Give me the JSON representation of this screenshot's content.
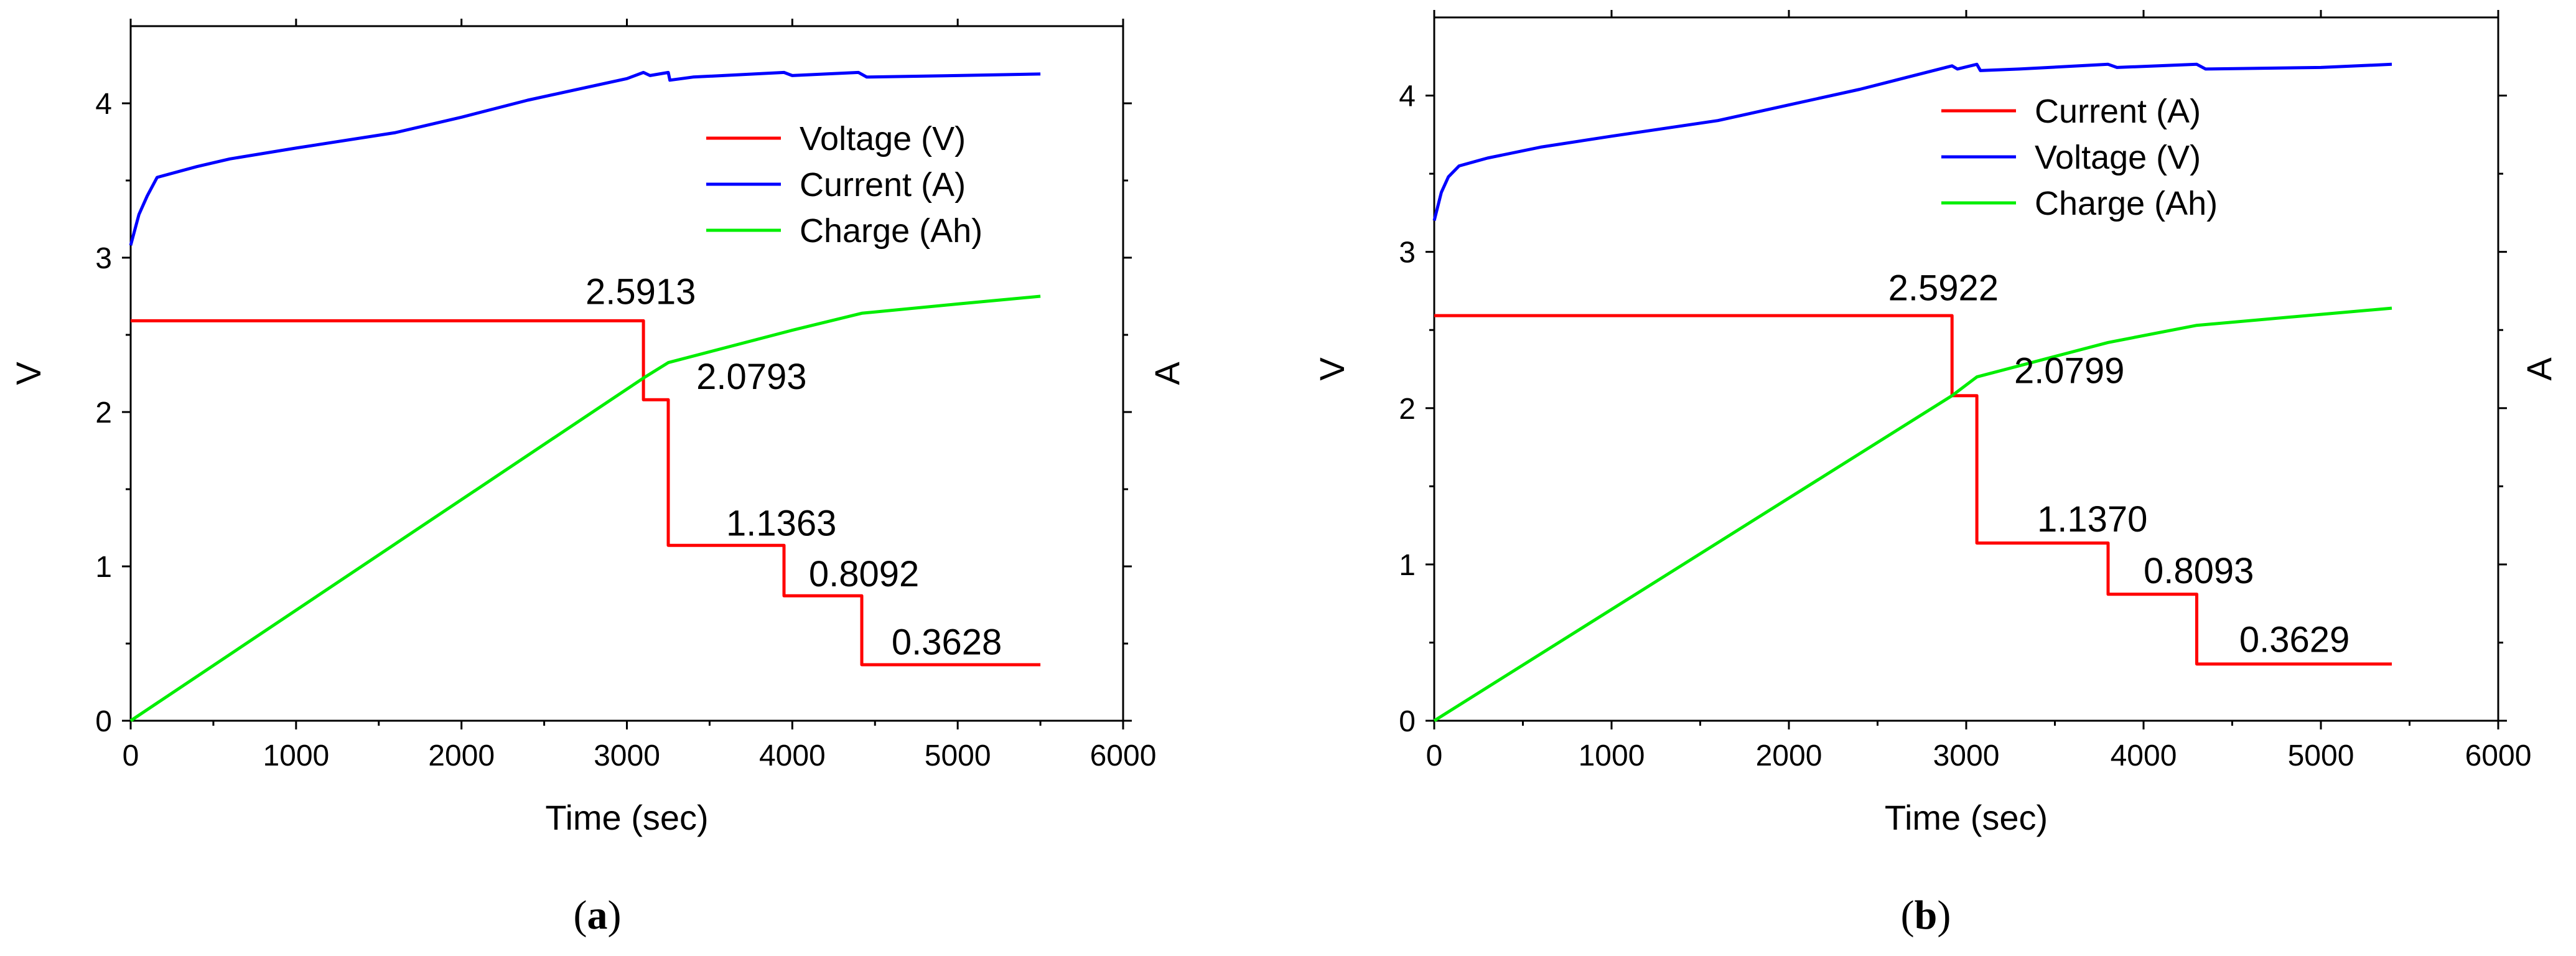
{
  "chart_data": [
    {
      "type": "line",
      "panel_label": "a",
      "xlabel": "Time (sec)",
      "ylabel": "V",
      "ylabel_right": "A",
      "xlim": [
        0,
        6000
      ],
      "ylim": [
        0,
        4.5
      ],
      "xticks": [
        0,
        1000,
        2000,
        3000,
        4000,
        5000,
        6000
      ],
      "yticks": [
        0,
        1,
        2,
        3,
        4
      ],
      "legend_position": "top-right",
      "series": [
        {
          "name": "Voltage (V)",
          "color": "#ff0000",
          "x": [
            0,
            3100,
            3100,
            3250,
            3250,
            3950,
            3950,
            4420,
            4420,
            5500
          ],
          "y": [
            2.5913,
            2.5913,
            2.0793,
            2.0793,
            1.1363,
            1.1363,
            0.8092,
            0.8092,
            0.3628,
            0.3628
          ]
        },
        {
          "name": "Current (A)",
          "color": "#0000ff",
          "x": [
            0,
            50,
            100,
            160,
            400,
            600,
            1000,
            1600,
            2000,
            2400,
            3000,
            3100,
            3140,
            3250,
            3260,
            3400,
            3950,
            4000,
            4400,
            4450,
            5000,
            5500
          ],
          "y": [
            3.08,
            3.28,
            3.4,
            3.52,
            3.59,
            3.64,
            3.71,
            3.81,
            3.91,
            4.02,
            4.16,
            4.2,
            4.18,
            4.2,
            4.15,
            4.17,
            4.2,
            4.18,
            4.2,
            4.17,
            4.18,
            4.19
          ]
        },
        {
          "name": "Charge (Ah)",
          "color": "#00ee00",
          "x": [
            0,
            3100,
            3250,
            4000,
            4420,
            5000,
            5500
          ],
          "y": [
            0,
            2.22,
            2.32,
            2.53,
            2.64,
            2.7,
            2.75
          ]
        }
      ],
      "annotations": [
        {
          "text": "2.5913",
          "x": 2750,
          "y": 2.7
        },
        {
          "text": "2.0793",
          "x": 3420,
          "y": 2.15
        },
        {
          "text": "1.1363",
          "x": 3600,
          "y": 1.2
        },
        {
          "text": "0.8092",
          "x": 4100,
          "y": 0.87
        },
        {
          "text": "0.3628",
          "x": 4600,
          "y": 0.43
        }
      ]
    },
    {
      "type": "line",
      "panel_label": "b",
      "xlabel": "Time (sec)",
      "ylabel": "V",
      "ylabel_right": "A",
      "xlim": [
        0,
        6000
      ],
      "ylim": [
        0,
        4.5
      ],
      "xticks": [
        0,
        1000,
        2000,
        3000,
        4000,
        5000,
        6000
      ],
      "yticks": [
        0,
        1,
        2,
        3,
        4
      ],
      "legend_position": "top-right",
      "series": [
        {
          "name": "Current (A)",
          "color": "#ff0000",
          "x": [
            0,
            2920,
            2920,
            3060,
            3060,
            3800,
            3800,
            4300,
            4300,
            5400
          ],
          "y": [
            2.5922,
            2.5922,
            2.0799,
            2.0799,
            1.137,
            1.137,
            0.8093,
            0.8093,
            0.3629,
            0.3629
          ]
        },
        {
          "name": "Voltage (V)",
          "color": "#0000ff",
          "x": [
            0,
            40,
            80,
            140,
            300,
            600,
            1000,
            1600,
            2000,
            2400,
            2920,
            2950,
            3060,
            3080,
            3300,
            3800,
            3850,
            4300,
            4350,
            5000,
            5400
          ],
          "y": [
            3.2,
            3.38,
            3.48,
            3.55,
            3.6,
            3.67,
            3.74,
            3.84,
            3.94,
            4.04,
            4.19,
            4.17,
            4.2,
            4.16,
            4.17,
            4.2,
            4.18,
            4.2,
            4.17,
            4.18,
            4.2
          ]
        },
        {
          "name": "Charge (Ah)",
          "color": "#00ee00",
          "x": [
            0,
            2920,
            3060,
            3800,
            4300,
            5000,
            5400
          ],
          "y": [
            0,
            2.08,
            2.2,
            2.42,
            2.53,
            2.6,
            2.64
          ]
        }
      ],
      "annotations": [
        {
          "text": "2.5922",
          "x": 2560,
          "y": 2.69
        },
        {
          "text": "2.0799",
          "x": 3270,
          "y": 2.16
        },
        {
          "text": "1.1370",
          "x": 3400,
          "y": 1.21
        },
        {
          "text": "0.8093",
          "x": 4000,
          "y": 0.88
        },
        {
          "text": "0.3629",
          "x": 4540,
          "y": 0.44
        }
      ]
    }
  ]
}
